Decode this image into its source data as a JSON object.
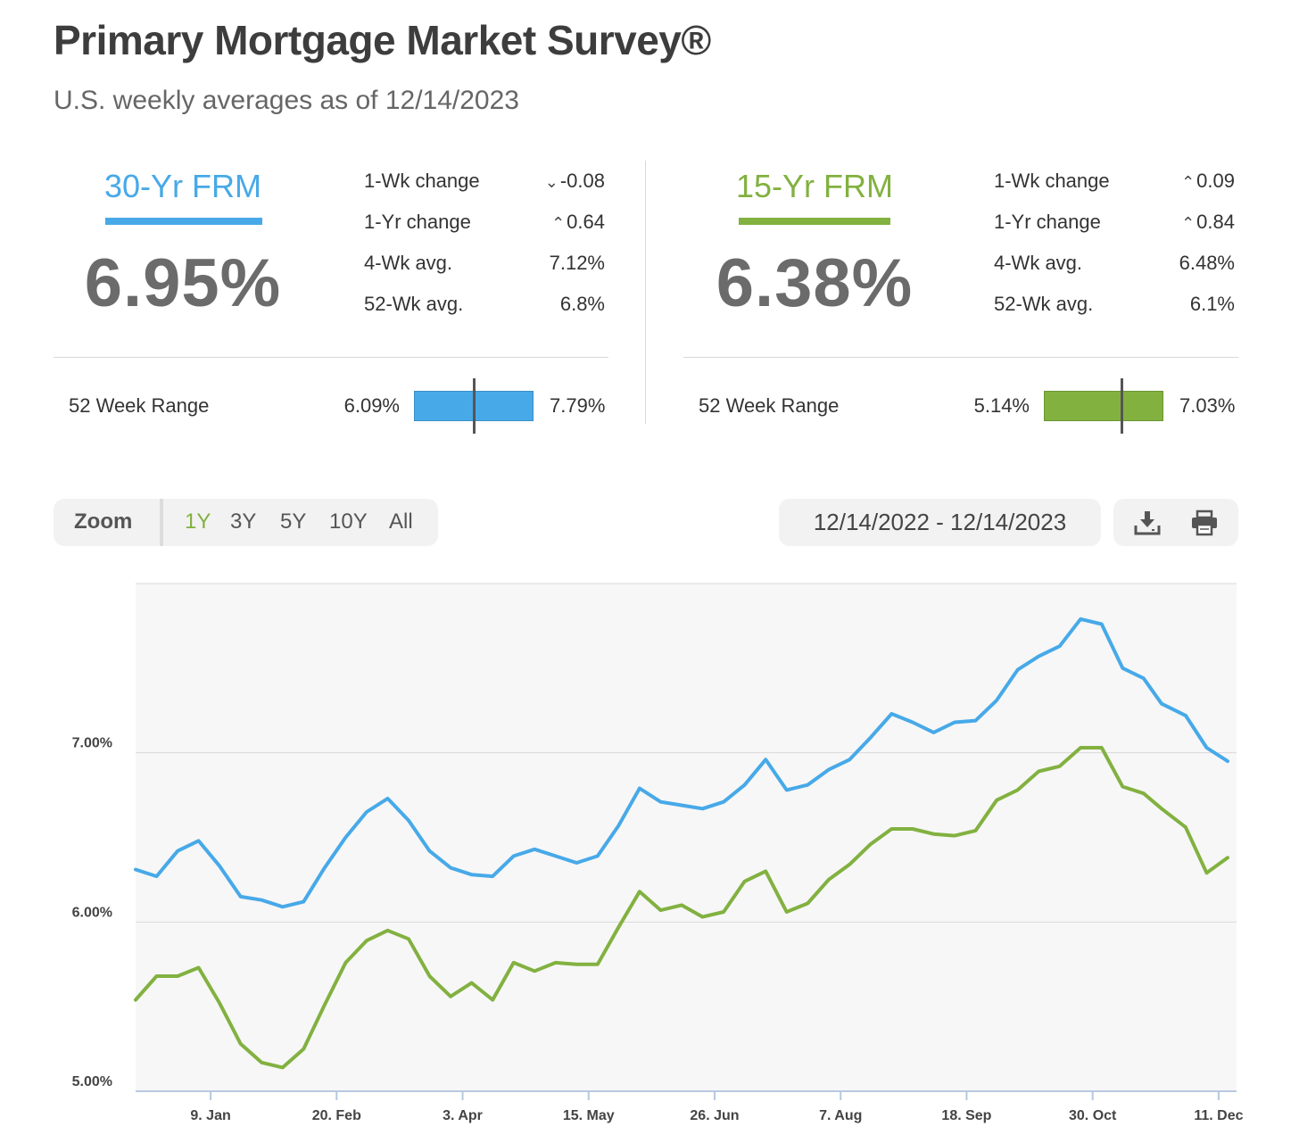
{
  "header": {
    "title": "Primary Mortgage Market Survey®",
    "subtitle": "U.S. weekly averages as of 12/14/2023"
  },
  "frm30": {
    "name": "30-Yr FRM",
    "color": "#47a9e8",
    "rate": "6.95%",
    "stats": [
      {
        "label": "1-Wk change",
        "value": "-0.08",
        "direction": "down"
      },
      {
        "label": "1-Yr change",
        "value": "0.64",
        "direction": "up"
      },
      {
        "label": "4-Wk avg.",
        "value": "7.12%"
      },
      {
        "label": "52-Wk avg.",
        "value": "6.8%"
      }
    ],
    "range": {
      "label": "52 Week Range",
      "min": "6.09%",
      "max": "7.79%",
      "current_fraction": 0.5
    }
  },
  "frm15": {
    "name": "15-Yr FRM",
    "color": "#82b140",
    "rate": "6.38%",
    "stats": [
      {
        "label": "1-Wk change",
        "value": "0.09",
        "direction": "up"
      },
      {
        "label": "1-Yr change",
        "value": "0.84",
        "direction": "up"
      },
      {
        "label": "4-Wk avg.",
        "value": "6.48%"
      },
      {
        "label": "52-Wk avg.",
        "value": "6.1%"
      }
    ],
    "range": {
      "label": "52 Week Range",
      "min": "5.14%",
      "max": "7.03%",
      "current_fraction": 0.65
    }
  },
  "toolbar": {
    "zoom_label": "Zoom",
    "zoom_options": [
      "1Y",
      "3Y",
      "5Y",
      "10Y",
      "All"
    ],
    "zoom_selected": "1Y",
    "date_range": "12/14/2022 - 12/14/2023",
    "icons": [
      "download-icon",
      "print-icon"
    ]
  },
  "chart_data": {
    "type": "line",
    "x": [
      "2022-12-15",
      "2022-12-22",
      "2022-12-29",
      "2023-01-05",
      "2023-01-12",
      "2023-01-19",
      "2023-01-26",
      "2023-02-02",
      "2023-02-09",
      "2023-02-16",
      "2023-02-23",
      "2023-03-02",
      "2023-03-09",
      "2023-03-16",
      "2023-03-23",
      "2023-03-30",
      "2023-04-06",
      "2023-04-13",
      "2023-04-20",
      "2023-04-27",
      "2023-05-04",
      "2023-05-11",
      "2023-05-18",
      "2023-05-25",
      "2023-06-01",
      "2023-06-08",
      "2023-06-15",
      "2023-06-22",
      "2023-06-29",
      "2023-07-06",
      "2023-07-13",
      "2023-07-20",
      "2023-07-27",
      "2023-08-03",
      "2023-08-10",
      "2023-08-17",
      "2023-08-24",
      "2023-08-31",
      "2023-09-07",
      "2023-09-14",
      "2023-09-21",
      "2023-09-28",
      "2023-10-05",
      "2023-10-12",
      "2023-10-19",
      "2023-10-26",
      "2023-11-02",
      "2023-11-09",
      "2023-11-16",
      "2023-11-22",
      "2023-11-30",
      "2023-12-07",
      "2023-12-14"
    ],
    "x_ticks": [
      "9. Jan",
      "20. Feb",
      "3. Apr",
      "15. May",
      "26. Jun",
      "7. Aug",
      "18. Sep",
      "30. Oct",
      "11. Dec"
    ],
    "x_tick_dates": [
      "2023-01-09",
      "2023-02-20",
      "2023-04-03",
      "2023-05-15",
      "2023-06-26",
      "2023-08-07",
      "2023-09-18",
      "2023-10-30",
      "2023-12-11"
    ],
    "y_ticks": [
      "5.00%",
      "6.00%",
      "7.00%"
    ],
    "y_tick_values": [
      5,
      6,
      7
    ],
    "ylim": [
      5,
      8
    ],
    "grid": true,
    "series": [
      {
        "color": "#47a9e8",
        "values": [
          6.31,
          6.27,
          6.42,
          6.48,
          6.33,
          6.15,
          6.13,
          6.09,
          6.12,
          6.32,
          6.5,
          6.65,
          6.73,
          6.6,
          6.42,
          6.32,
          6.28,
          6.27,
          6.39,
          6.43,
          6.39,
          6.35,
          6.39,
          6.57,
          6.79,
          6.71,
          6.69,
          6.67,
          6.71,
          6.81,
          6.96,
          6.78,
          6.81,
          6.9,
          6.96,
          7.09,
          7.23,
          7.18,
          7.12,
          7.18,
          7.19,
          7.31,
          7.49,
          7.57,
          7.63,
          7.79,
          7.76,
          7.5,
          7.44,
          7.29,
          7.22,
          7.03,
          6.95
        ]
      },
      {
        "color": "#82b140",
        "values": [
          5.54,
          5.68,
          5.68,
          5.73,
          5.52,
          5.28,
          5.17,
          5.14,
          5.25,
          5.51,
          5.76,
          5.89,
          5.95,
          5.9,
          5.68,
          5.56,
          5.64,
          5.54,
          5.76,
          5.71,
          5.76,
          5.75,
          5.75,
          5.97,
          6.18,
          6.07,
          6.1,
          6.03,
          6.06,
          6.24,
          6.3,
          6.06,
          6.11,
          6.25,
          6.34,
          6.46,
          6.55,
          6.55,
          6.52,
          6.51,
          6.54,
          6.72,
          6.78,
          6.89,
          6.92,
          7.03,
          7.03,
          6.8,
          6.76,
          6.67,
          6.56,
          6.29,
          6.38
        ]
      }
    ]
  }
}
